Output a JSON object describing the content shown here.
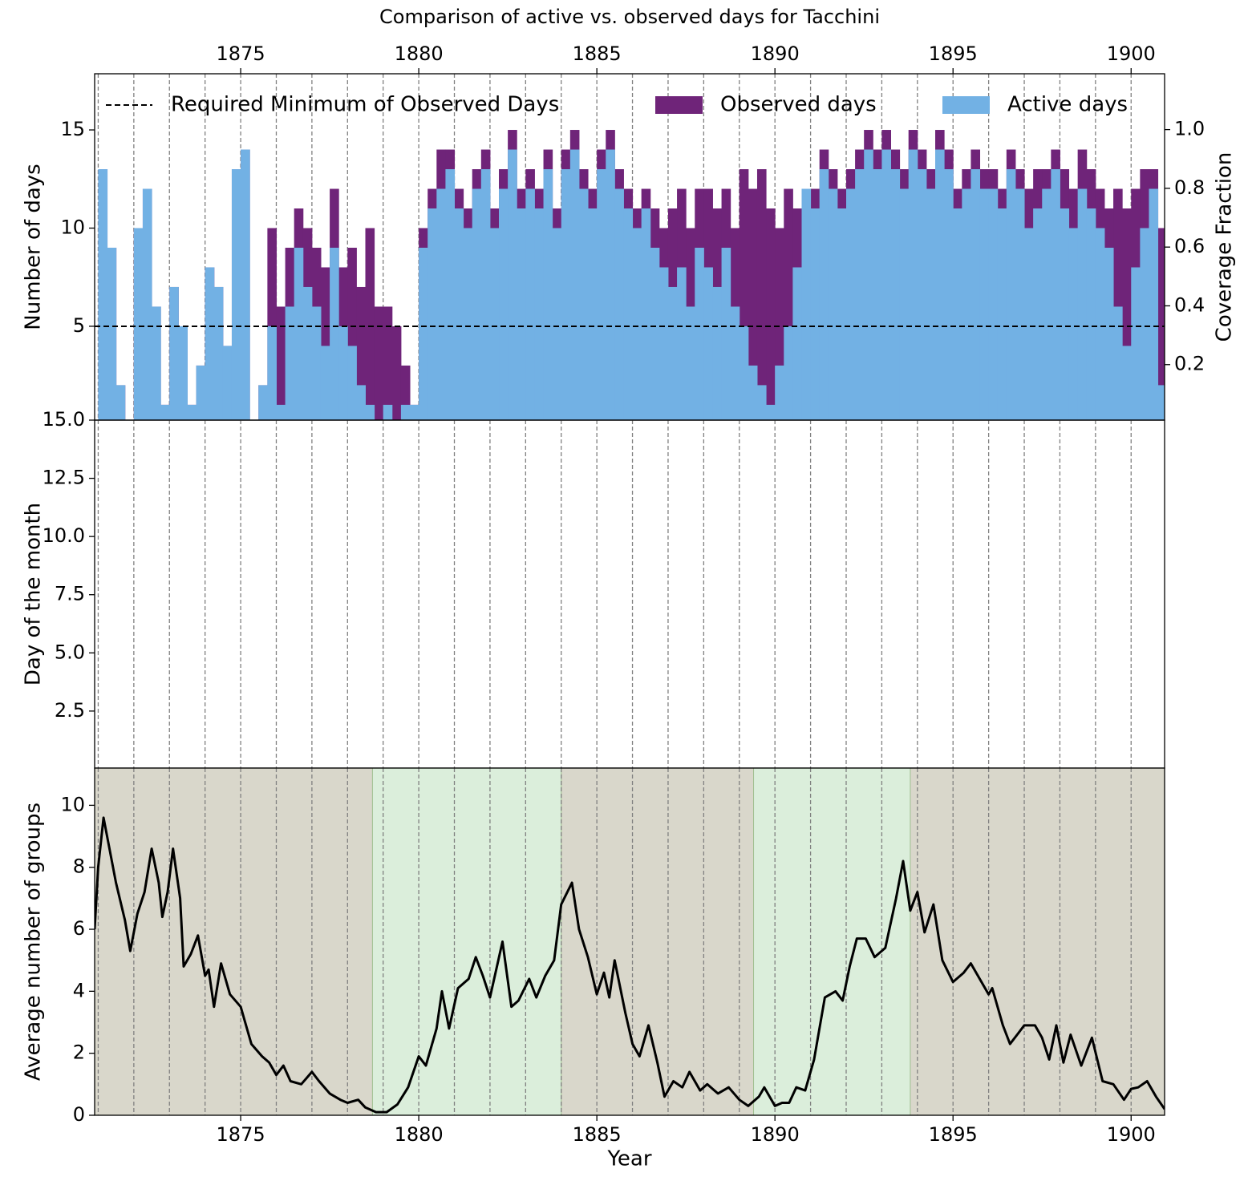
{
  "chart_data": [
    {
      "type": "bar",
      "title": "Comparison of active vs. observed days for Tacchini",
      "ylabel": "Number of days",
      "y2label": "Coverage Fraction",
      "xlim": [
        1870.9,
        1900.94
      ],
      "xticks": [
        1875,
        1880,
        1885,
        1890,
        1895,
        1900
      ],
      "xaxis_position": "top",
      "xminorticks": [
        1871,
        1872,
        1873,
        1874,
        1875,
        1876,
        1877,
        1878,
        1879,
        1880,
        1881,
        1882,
        1883,
        1884,
        1885,
        1886,
        1887,
        1888,
        1889,
        1890,
        1891,
        1892,
        1893,
        1894,
        1895,
        1896,
        1897,
        1898,
        1899,
        1900
      ],
      "ylim": [
        0.22,
        17.86
      ],
      "yticks": [
        5,
        10,
        15
      ],
      "y2lim": [
        0.011,
        1.19
      ],
      "y2ticks": [
        0.2,
        0.4,
        0.6,
        0.8,
        {
          "value": 1,
          "label": "1.0"
        }
      ],
      "hline": {
        "name": "Required Minimum of Observed Days",
        "value": 5,
        "color": "#000000"
      },
      "x": [
        1871,
        1871.25,
        1871.5,
        1871.75,
        1872,
        1872.25,
        1872.5,
        1872.75,
        1873,
        1873.25,
        1873.5,
        1873.75,
        1874,
        1874.25,
        1874.5,
        1874.75,
        1875,
        1875.25,
        1875.5,
        1875.75,
        1876,
        1876.25,
        1876.5,
        1876.75,
        1877,
        1877.25,
        1877.5,
        1877.75,
        1878,
        1878.25,
        1878.5,
        1878.75,
        1879,
        1879.25,
        1879.5,
        1879.75,
        1880,
        1880.25,
        1880.5,
        1880.75,
        1881,
        1881.25,
        1881.5,
        1881.75,
        1882,
        1882.25,
        1882.5,
        1882.75,
        1883,
        1883.25,
        1883.5,
        1883.75,
        1884,
        1884.25,
        1884.5,
        1884.75,
        1885,
        1885.25,
        1885.5,
        1885.75,
        1886,
        1886.25,
        1886.5,
        1886.75,
        1887,
        1887.25,
        1887.5,
        1887.75,
        1888,
        1888.25,
        1888.5,
        1888.75,
        1889,
        1889.25,
        1889.5,
        1889.75,
        1890,
        1890.25,
        1890.5,
        1890.75,
        1891,
        1891.25,
        1891.5,
        1891.75,
        1892,
        1892.25,
        1892.5,
        1892.75,
        1893,
        1893.25,
        1893.5,
        1893.75,
        1894,
        1894.25,
        1894.5,
        1894.75,
        1895,
        1895.25,
        1895.5,
        1895.75,
        1896,
        1896.25,
        1896.5,
        1896.75,
        1897,
        1897.25,
        1897.5,
        1897.75,
        1898,
        1898.25,
        1898.5,
        1898.75,
        1899,
        1899.25,
        1899.5,
        1899.75,
        1900,
        1900.25,
        1900.5,
        1900.75
      ],
      "series": [
        {
          "name": "Observed days",
          "color": "#6f2479",
          "values": [
            13,
            9,
            2,
            0,
            10,
            12,
            6,
            1,
            7,
            5,
            1,
            3,
            8,
            7,
            4,
            13,
            14,
            0,
            2,
            10,
            6,
            9,
            11,
            10,
            9,
            8,
            12,
            8,
            9,
            7,
            10,
            6,
            6,
            5,
            3,
            1,
            10,
            12,
            14,
            14,
            12,
            11,
            13,
            14,
            11,
            13,
            15,
            12,
            13,
            12,
            14,
            11,
            14,
            15,
            13,
            12,
            14,
            15,
            13,
            12,
            11,
            12,
            11,
            10,
            11,
            12,
            10,
            12,
            12,
            11,
            12,
            10,
            13,
            12,
            13,
            11,
            10,
            12,
            11,
            12,
            12,
            14,
            13,
            12,
            13,
            14,
            15,
            14,
            15,
            14,
            13,
            15,
            14,
            13,
            15,
            14,
            12,
            13,
            14,
            13,
            13,
            12,
            14,
            13,
            12,
            13,
            13,
            14,
            13,
            12,
            14,
            13,
            12,
            11,
            12,
            11,
            12,
            13,
            13,
            10
          ]
        },
        {
          "name": "Active days",
          "color": "#72b1e4",
          "values": [
            13,
            9,
            2,
            0,
            10,
            12,
            6,
            1,
            7,
            5,
            1,
            3,
            8,
            7,
            4,
            13,
            14,
            0,
            2,
            5,
            1,
            6,
            9,
            7,
            6,
            4,
            9,
            5,
            4,
            2,
            1,
            0,
            1,
            0,
            1,
            1,
            9,
            11,
            12,
            13,
            11,
            10,
            12,
            13,
            10,
            12,
            14,
            11,
            12,
            11,
            13,
            10,
            13,
            14,
            12,
            11,
            13,
            14,
            12,
            11,
            10,
            11,
            9,
            8,
            7,
            8,
            6,
            9,
            8,
            7,
            9,
            6,
            5,
            3,
            2,
            1,
            3,
            5,
            8,
            12,
            11,
            13,
            12,
            11,
            12,
            13,
            14,
            13,
            14,
            13,
            12,
            14,
            13,
            12,
            14,
            13,
            11,
            12,
            13,
            12,
            12,
            11,
            13,
            12,
            10,
            11,
            12,
            13,
            11,
            10,
            12,
            11,
            10,
            9,
            6,
            4,
            8,
            10,
            12,
            2
          ]
        }
      ]
    },
    {
      "type": "raster",
      "ylabel": "Day of the month",
      "xlim": [
        1870.9,
        1900.94
      ],
      "xminorticks": [
        1871,
        1872,
        1873,
        1874,
        1875,
        1876,
        1877,
        1878,
        1879,
        1880,
        1881,
        1882,
        1883,
        1884,
        1885,
        1886,
        1887,
        1888,
        1889,
        1890,
        1891,
        1892,
        1893,
        1894,
        1895,
        1896,
        1897,
        1898,
        1899,
        1900
      ],
      "ylim": [
        0.05,
        15
      ],
      "yticks": [
        2.5,
        {
          "value": 5,
          "label": "5.0"
        },
        7.5,
        {
          "value": 10,
          "label": "10.0"
        },
        12.5,
        {
          "value": 15,
          "label": "15.0"
        }
      ]
    },
    {
      "type": "line",
      "ylabel": "Average number of groups",
      "xlabel": "Year",
      "xlim": [
        1870.9,
        1900.94
      ],
      "xticks": [
        1875,
        1880,
        1885,
        1890,
        1895,
        1900
      ],
      "xaxis_position": "bottom",
      "xminorticks": [
        1871,
        1872,
        1873,
        1874,
        1875,
        1876,
        1877,
        1878,
        1879,
        1880,
        1881,
        1882,
        1883,
        1884,
        1885,
        1886,
        1887,
        1888,
        1889,
        1890,
        1891,
        1892,
        1893,
        1894,
        1895,
        1896,
        1897,
        1898,
        1899,
        1900
      ],
      "ylim": [
        0,
        11.2
      ],
      "yticks": [
        0,
        2,
        4,
        6,
        8,
        10
      ],
      "background": "#d9d7cb",
      "spans": [
        {
          "start": 1878.7,
          "end": 1884.0,
          "color": "#dbeedb"
        },
        {
          "start": 1889.4,
          "end": 1893.8,
          "color": "#dbeedb"
        }
      ],
      "color": "#000000",
      "x": [
        1870.9,
        1871,
        1871.15,
        1871.5,
        1871.75,
        1871.9,
        1872.1,
        1872.3,
        1872.5,
        1872.7,
        1872.8,
        1872.95,
        1873.1,
        1873.3,
        1873.4,
        1873.6,
        1873.8,
        1874,
        1874.1,
        1874.25,
        1874.45,
        1874.7,
        1875,
        1875.3,
        1875.6,
        1875.8,
        1876,
        1876.2,
        1876.4,
        1876.7,
        1877,
        1877.2,
        1877.5,
        1877.8,
        1878,
        1878.3,
        1878.5,
        1878.8,
        1879.1,
        1879.4,
        1879.7,
        1880,
        1880.2,
        1880.5,
        1880.65,
        1880.85,
        1881.1,
        1881.4,
        1881.6,
        1881.8,
        1882,
        1882.35,
        1882.6,
        1882.8,
        1883.1,
        1883.3,
        1883.55,
        1883.8,
        1884,
        1884.3,
        1884.5,
        1884.75,
        1885,
        1885.2,
        1885.35,
        1885.5,
        1885.8,
        1886,
        1886.2,
        1886.45,
        1886.7,
        1886.9,
        1887.15,
        1887.4,
        1887.6,
        1887.9,
        1888.1,
        1888.4,
        1888.7,
        1889,
        1889.25,
        1889.55,
        1889.7,
        1890,
        1890.2,
        1890.4,
        1890.6,
        1890.85,
        1891.1,
        1891.4,
        1891.7,
        1891.9,
        1892.1,
        1892.3,
        1892.55,
        1892.8,
        1893.1,
        1893.4,
        1893.6,
        1893.8,
        1894,
        1894.2,
        1894.45,
        1894.7,
        1895,
        1895.3,
        1895.5,
        1895.8,
        1896,
        1896.1,
        1896.4,
        1896.6,
        1896.8,
        1897,
        1897.3,
        1897.5,
        1897.7,
        1897.9,
        1898.1,
        1898.3,
        1898.6,
        1898.9,
        1899.2,
        1899.5,
        1899.8,
        1900,
        1900.2,
        1900.45,
        1900.7,
        1900.94
      ],
      "values": [
        6.0,
        8.0,
        9.6,
        7.5,
        6.3,
        5.3,
        6.5,
        7.2,
        8.6,
        7.5,
        6.4,
        7.2,
        8.6,
        7.0,
        4.8,
        5.2,
        5.8,
        4.5,
        4.7,
        3.5,
        4.9,
        3.9,
        3.5,
        2.3,
        1.9,
        1.7,
        1.3,
        1.6,
        1.1,
        1.0,
        1.4,
        1.1,
        0.7,
        0.5,
        0.4,
        0.5,
        0.25,
        0.1,
        0.1,
        0.35,
        0.9,
        1.9,
        1.6,
        2.8,
        4.0,
        2.8,
        4.1,
        4.4,
        5.1,
        4.5,
        3.8,
        5.6,
        3.5,
        3.7,
        4.4,
        3.8,
        4.5,
        5.0,
        6.8,
        7.5,
        6.0,
        5.1,
        3.9,
        4.6,
        3.8,
        5.0,
        3.3,
        2.3,
        1.9,
        2.9,
        1.7,
        0.6,
        1.1,
        0.9,
        1.4,
        0.8,
        1.0,
        0.7,
        0.9,
        0.5,
        0.3,
        0.6,
        0.9,
        0.3,
        0.4,
        0.4,
        0.9,
        0.8,
        1.8,
        3.8,
        4.0,
        3.7,
        4.8,
        5.7,
        5.7,
        5.1,
        5.4,
        7.0,
        8.2,
        6.6,
        7.2,
        5.9,
        6.8,
        5.0,
        4.3,
        4.6,
        4.9,
        4.3,
        3.9,
        4.1,
        2.9,
        2.3,
        2.6,
        2.9,
        2.9,
        2.5,
        1.8,
        2.9,
        1.7,
        2.6,
        1.6,
        2.5,
        1.1,
        1.0,
        0.5,
        0.85,
        0.9,
        1.1,
        0.6,
        0.2
      ]
    }
  ]
}
